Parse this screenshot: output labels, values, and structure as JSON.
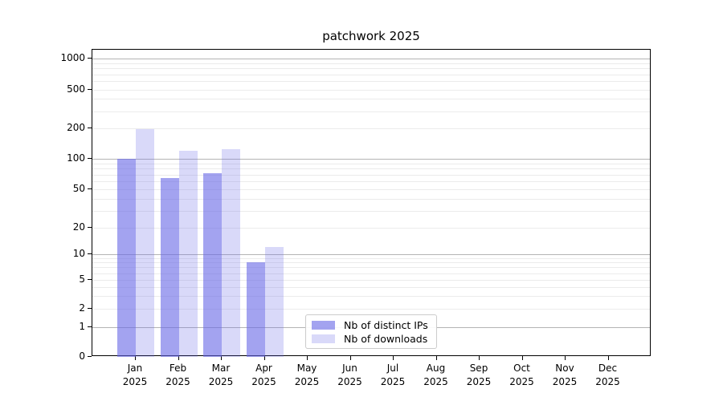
{
  "chart_data": {
    "type": "bar",
    "title": "patchwork 2025",
    "categories": [
      "Jan",
      "Feb",
      "Mar",
      "Apr",
      "May",
      "Jun",
      "Jul",
      "Aug",
      "Sep",
      "Oct",
      "Nov",
      "Dec"
    ],
    "category_year": "2025",
    "series": [
      {
        "name": "Nb of distinct IPs",
        "color": "rgba(102,102,230,0.6)",
        "values": [
          100,
          65,
          72,
          8,
          null,
          null,
          null,
          null,
          null,
          null,
          null,
          null
        ]
      },
      {
        "name": "Nb of downloads",
        "color": "rgba(102,102,230,0.25)",
        "values": [
          195,
          120,
          125,
          12,
          null,
          null,
          null,
          null,
          null,
          null,
          null,
          null
        ]
      }
    ],
    "xlabel": "",
    "ylabel": "",
    "y_scale": "symlog",
    "ylim": [
      0,
      1200
    ],
    "yticks": [
      0,
      1,
      2,
      5,
      10,
      20,
      50,
      100,
      200,
      500,
      1000
    ],
    "yticks_minor": [
      3,
      4,
      6,
      7,
      8,
      9,
      30,
      40,
      60,
      70,
      80,
      90,
      300,
      400,
      600,
      700,
      800,
      900
    ],
    "grid": true,
    "legend_position": "lower-center-inside",
    "colors": {
      "background": "#ffffff",
      "axis": "#000000",
      "grid_major": "#b4b4b4",
      "grid_minor": "#ebebeb",
      "bar_base": "#6666e6"
    }
  }
}
